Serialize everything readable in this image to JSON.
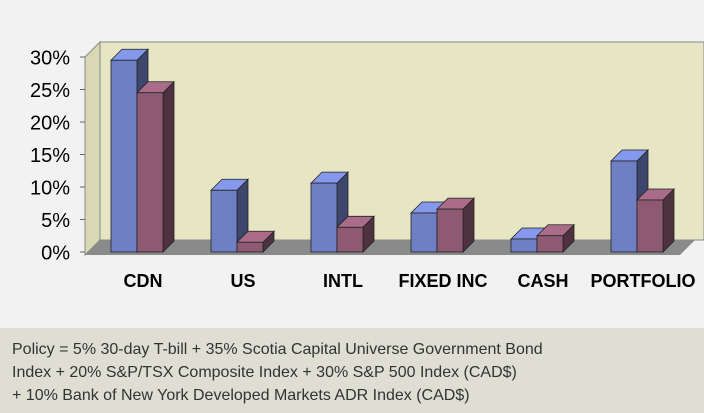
{
  "chart_data": {
    "type": "bar",
    "categories": [
      "CDN",
      "US",
      "INTL",
      "FIXED INC",
      "CASH",
      "PORTFOLIO"
    ],
    "series": [
      {
        "color": "#6f7fc4",
        "values": [
          29.5,
          9.5,
          10.6,
          6,
          2,
          14
        ]
      },
      {
        "color": "#8e5a72",
        "values": [
          24.5,
          1.5,
          3.8,
          6.6,
          2.5,
          8
        ]
      }
    ],
    "ylim": [
      0,
      30
    ],
    "yticks": [
      {
        "value": 0,
        "label": "0%"
      },
      {
        "value": 5,
        "label": "5%"
      },
      {
        "value": 10,
        "label": "10%"
      },
      {
        "value": 15,
        "label": "15%"
      },
      {
        "value": 20,
        "label": "20%"
      },
      {
        "value": 25,
        "label": "25%"
      },
      {
        "value": 30,
        "label": "30%"
      }
    ],
    "footnote": [
      "Policy = 5% 30-day T-bill + 35% Scotia Capital Universe Government Bond",
      "Index + 20% S&P/TSX Composite Index + 30% S&P 500 Index (CAD$)",
      "+ 10% Bank of New York Developed Markets ADR Index (CAD$)"
    ]
  }
}
